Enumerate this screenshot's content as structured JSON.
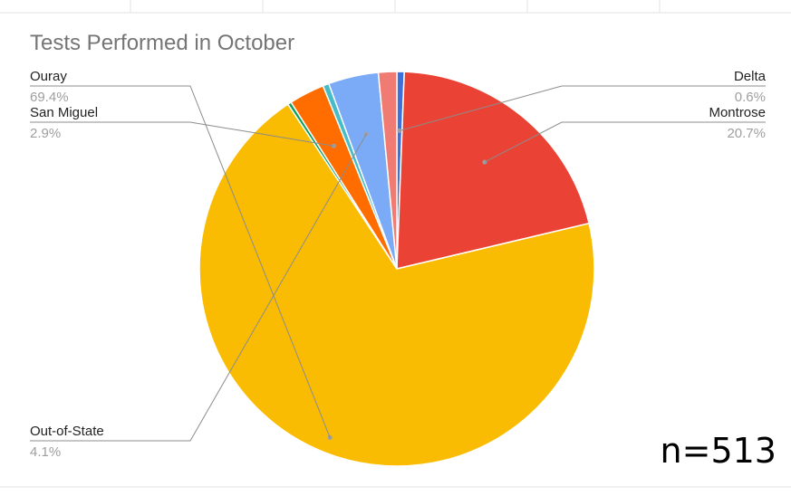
{
  "chart_data": {
    "type": "pie",
    "title": "Tests Performed in October",
    "slices": [
      {
        "label": "Delta",
        "value": 0.6,
        "display": "0.6%",
        "color": "#3f6fd8",
        "side": "right"
      },
      {
        "label": "Montrose",
        "value": 20.7,
        "display": "20.7%",
        "color": "#ea4335",
        "side": "right"
      },
      {
        "label": "Ouray",
        "value": 69.4,
        "display": "69.4%",
        "color": "#f9bc02",
        "side": "left"
      },
      {
        "label": "",
        "value": 0.3,
        "display": "",
        "color": "#0f9d58",
        "side": "none"
      },
      {
        "label": "San Miguel",
        "value": 2.9,
        "display": "2.9%",
        "color": "#ff6d01",
        "side": "left"
      },
      {
        "label": "",
        "value": 0.5,
        "display": "",
        "color": "#46bdc6",
        "side": "none"
      },
      {
        "label": "Out-of-State",
        "value": 4.1,
        "display": "4.1%",
        "color": "#7baaf7",
        "side": "left"
      },
      {
        "label": "",
        "value": 1.5,
        "display": "",
        "color": "#f07b72",
        "side": "none"
      }
    ],
    "legend": "none"
  },
  "annotation": {
    "sample_size": "n=513"
  }
}
